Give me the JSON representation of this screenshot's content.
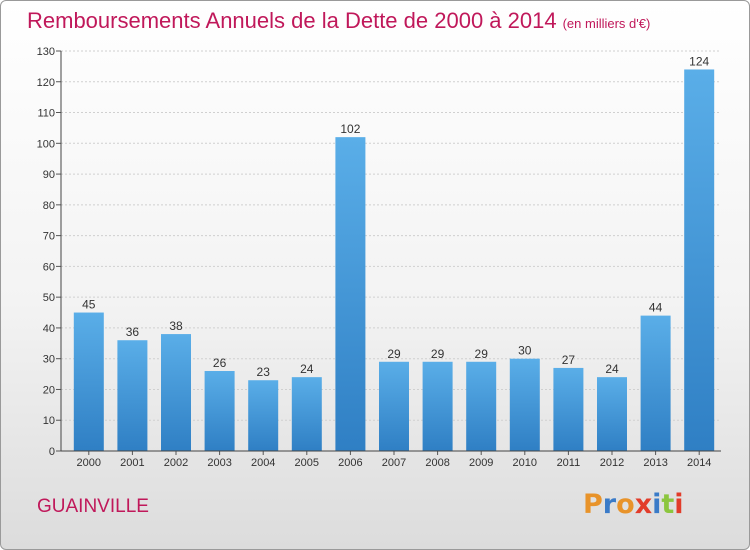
{
  "header": {
    "title": "Remboursements Annuels de la Dette de 2000 à 2014",
    "subtitle": "(en milliers d'€)"
  },
  "footer": {
    "commune": "GUAINVILLE",
    "logo_text": "Proxiti",
    "logo_colors": [
      "#e8932a",
      "#3a7bc8",
      "#e8932a",
      "#e23c2a",
      "#3a7bc8",
      "#8cc63f",
      "#e23c2a"
    ]
  },
  "chart_data": {
    "type": "bar",
    "title": "Remboursements Annuels de la Dette de 2000 à 2014",
    "subtitle": "(en milliers d'€)",
    "categories": [
      "2000",
      "2001",
      "2002",
      "2003",
      "2004",
      "2005",
      "2006",
      "2007",
      "2008",
      "2009",
      "2010",
      "2011",
      "2012",
      "2013",
      "2014"
    ],
    "values": [
      45,
      36,
      38,
      26,
      23,
      24,
      102,
      29,
      29,
      29,
      30,
      27,
      24,
      44,
      124
    ],
    "ylim": [
      0,
      130
    ],
    "yticks": [
      0,
      10,
      20,
      30,
      40,
      50,
      60,
      70,
      80,
      90,
      100,
      110,
      120,
      130
    ],
    "grid": true,
    "bar_color_top": "#5aaee8",
    "bar_color_bottom": "#2f7fc4"
  }
}
